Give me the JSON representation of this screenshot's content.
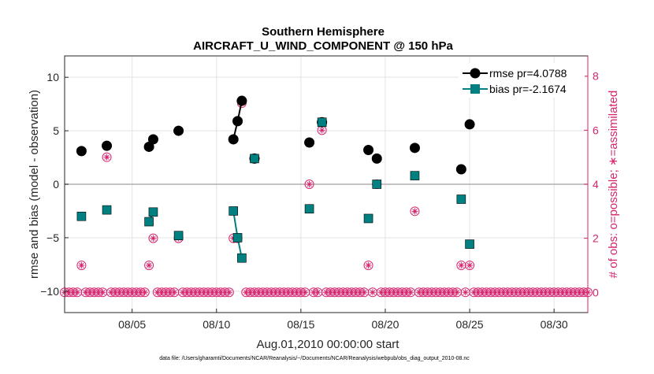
{
  "chart_data": {
    "type": "line",
    "title": "Southern Hemisphere",
    "subtitle": "AIRCRAFT_U_WIND_COMPONENT @ 150 hPa",
    "xlabel": "Aug.01,2010 00:00:00 start",
    "ylabel": "rmse and bias (model - observation)",
    "ylabel_right": "# of obs: o=possible; ∗=assimilated",
    "footer": "data file: /Users/gharamti/Documents/NCAR/Reanalysis/~/Documents/NCAR/Reanalysis/webpub/obs_diag_output_2010-08.nc",
    "xlim": [
      1,
      32
    ],
    "ylim": [
      -12,
      12
    ],
    "ylim_right": [
      -0.75,
      8.75
    ],
    "grid": true,
    "legend_position": "top-right",
    "x_ticks": [
      5,
      10,
      15,
      20,
      25,
      30
    ],
    "x_tick_labels": [
      "08/05",
      "08/10",
      "08/15",
      "08/20",
      "08/25",
      "08/30"
    ],
    "y_ticks": [
      -10,
      -5,
      0,
      5,
      10
    ],
    "y_tick_labels": [
      "−10",
      "−5",
      "0",
      "5",
      "10"
    ],
    "y_right_ticks": [
      0,
      2,
      4,
      6,
      8
    ],
    "y_right_tick_labels": [
      "0",
      "2",
      "4",
      "6",
      "8"
    ],
    "zero_line": 0,
    "series": [
      {
        "name": "rmse pr=4.0788",
        "color": "#000000",
        "marker": "circle",
        "axis": "left",
        "points": [
          [
            2,
            3.1
          ],
          [
            3.5,
            3.6
          ],
          [
            6,
            3.5
          ],
          [
            6.25,
            4.2
          ],
          [
            7.75,
            5.0
          ],
          [
            11,
            4.2
          ],
          [
            11.25,
            5.9
          ],
          [
            11.5,
            7.8
          ],
          [
            12.25,
            2.4
          ],
          [
            15.5,
            3.9
          ],
          [
            16.25,
            5.8
          ],
          [
            19,
            3.2
          ],
          [
            19.5,
            2.4
          ],
          [
            21.75,
            3.4
          ],
          [
            24.5,
            1.4
          ],
          [
            25,
            5.6
          ]
        ],
        "segments": [
          [
            6,
            6.25
          ],
          [
            11,
            11.25
          ],
          [
            11.25,
            11.5
          ]
        ]
      },
      {
        "name": "bias pr=-2.1674",
        "color": "#008080",
        "marker": "square",
        "axis": "left",
        "points": [
          [
            2,
            -3.0
          ],
          [
            3.5,
            -2.4
          ],
          [
            6,
            -3.5
          ],
          [
            6.25,
            -2.6
          ],
          [
            7.75,
            -4.8
          ],
          [
            11,
            -2.5
          ],
          [
            11.25,
            -5.0
          ],
          [
            11.5,
            -6.9
          ],
          [
            12.25,
            2.4
          ],
          [
            15.5,
            -2.3
          ],
          [
            16.25,
            5.8
          ],
          [
            19,
            -3.2
          ],
          [
            19.5,
            0.0
          ],
          [
            21.75,
            0.8
          ],
          [
            24.5,
            -1.4
          ],
          [
            25,
            -5.6
          ]
        ],
        "segments": [
          [
            6,
            6.25
          ],
          [
            11,
            11.25
          ],
          [
            11.25,
            11.5
          ]
        ]
      },
      {
        "name": "obs possible",
        "color": "#d6246e",
        "marker": "circle-open",
        "axis": "right",
        "points": [
          [
            2,
            1
          ],
          [
            3.5,
            5
          ],
          [
            6,
            1
          ],
          [
            6.25,
            2
          ],
          [
            7.75,
            2
          ],
          [
            11,
            2
          ],
          [
            11.25,
            2
          ],
          [
            11.5,
            7
          ],
          [
            15.5,
            4
          ],
          [
            16.25,
            6
          ],
          [
            19,
            1
          ],
          [
            19.5,
            4
          ],
          [
            21.75,
            3
          ],
          [
            24.5,
            1
          ],
          [
            25,
            1
          ]
        ],
        "zero_days_start": 1,
        "zero_days_end": 32,
        "zero_days_step": 0.25
      },
      {
        "name": "obs assimilated",
        "color": "#d6246e",
        "marker": "asterisk",
        "axis": "right"
      }
    ]
  }
}
